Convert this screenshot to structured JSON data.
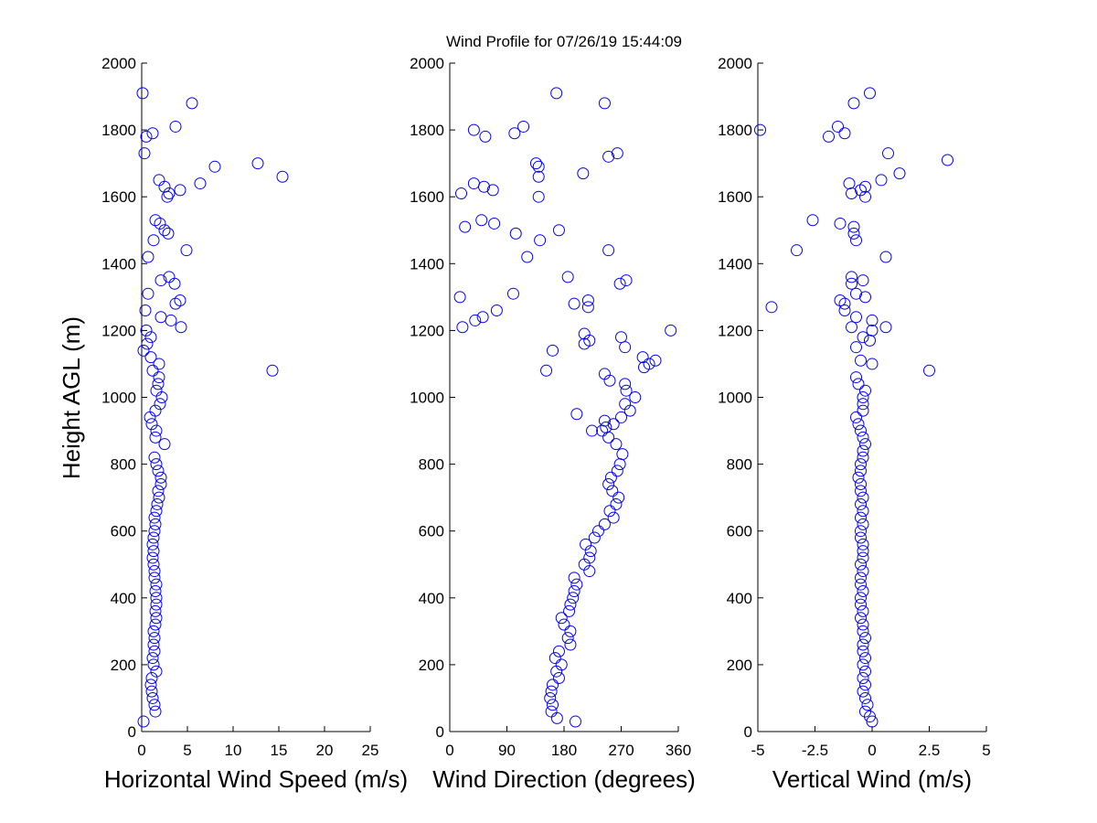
{
  "figure": {
    "title": "Wind Profile for  07/26/19 15:44:09",
    "ylabel": "Height AGL (m)"
  },
  "colors": {
    "marker": "#0000ff",
    "axis": "#000000",
    "background": "#ffffff"
  },
  "chart_data": [
    {
      "type": "scatter",
      "xlabel": "Horizontal Wind Speed (m/s)",
      "ylabel": "Height AGL (m)",
      "xlim": [
        0,
        25
      ],
      "ylim": [
        0,
        2000
      ],
      "xticks": [
        0,
        5,
        10,
        15,
        20,
        25
      ],
      "xtick_labels": [
        "0",
        "5",
        "10",
        "15",
        "20",
        "25"
      ],
      "yticks": [
        0,
        200,
        400,
        600,
        800,
        1000,
        1200,
        1400,
        1600,
        1800,
        2000
      ],
      "ytick_labels": [
        "0",
        "200",
        "400",
        "600",
        "800",
        "1000",
        "1200",
        "1400",
        "1600",
        "1800",
        "2000"
      ],
      "grid": false,
      "points": [
        [
          0.2,
          30
        ],
        [
          1.5,
          60
        ],
        [
          1.4,
          80
        ],
        [
          1.2,
          100
        ],
        [
          1.1,
          120
        ],
        [
          1.0,
          140
        ],
        [
          1.1,
          160
        ],
        [
          1.6,
          180
        ],
        [
          1.3,
          200
        ],
        [
          1.2,
          220
        ],
        [
          1.4,
          240
        ],
        [
          1.3,
          260
        ],
        [
          1.4,
          280
        ],
        [
          1.3,
          300
        ],
        [
          1.5,
          320
        ],
        [
          1.6,
          340
        ],
        [
          1.5,
          360
        ],
        [
          1.6,
          380
        ],
        [
          1.6,
          400
        ],
        [
          1.5,
          420
        ],
        [
          1.6,
          440
        ],
        [
          1.4,
          460
        ],
        [
          1.4,
          480
        ],
        [
          1.3,
          500
        ],
        [
          1.2,
          520
        ],
        [
          1.3,
          540
        ],
        [
          1.2,
          560
        ],
        [
          1.3,
          580
        ],
        [
          1.4,
          600
        ],
        [
          1.5,
          620
        ],
        [
          1.4,
          640
        ],
        [
          1.6,
          660
        ],
        [
          1.7,
          680
        ],
        [
          1.9,
          700
        ],
        [
          1.8,
          720
        ],
        [
          2.1,
          740
        ],
        [
          2.1,
          760
        ],
        [
          1.8,
          780
        ],
        [
          1.6,
          800
        ],
        [
          1.4,
          820
        ],
        [
          2.5,
          860
        ],
        [
          1.5,
          880
        ],
        [
          1.6,
          900
        ],
        [
          1.1,
          920
        ],
        [
          0.9,
          940
        ],
        [
          1.5,
          960
        ],
        [
          2.0,
          980
        ],
        [
          2.2,
          1000
        ],
        [
          1.6,
          1020
        ],
        [
          1.8,
          1040
        ],
        [
          1.9,
          1060
        ],
        [
          1.2,
          1080
        ],
        [
          14.3,
          1080
        ],
        [
          1.9,
          1100
        ],
        [
          1.0,
          1120
        ],
        [
          0.2,
          1140
        ],
        [
          0.6,
          1160
        ],
        [
          1.0,
          1180
        ],
        [
          0.5,
          1200
        ],
        [
          4.3,
          1210
        ],
        [
          3.2,
          1230
        ],
        [
          2.1,
          1240
        ],
        [
          0.4,
          1260
        ],
        [
          4.2,
          1290
        ],
        [
          3.7,
          1280
        ],
        [
          0.7,
          1310
        ],
        [
          3.6,
          1340
        ],
        [
          2.1,
          1350
        ],
        [
          3.0,
          1360
        ],
        [
          0.7,
          1420
        ],
        [
          4.9,
          1440
        ],
        [
          1.3,
          1470
        ],
        [
          2.9,
          1490
        ],
        [
          2.5,
          1500
        ],
        [
          2.0,
          1520
        ],
        [
          1.5,
          1530
        ],
        [
          2.8,
          1600
        ],
        [
          3.0,
          1610
        ],
        [
          4.2,
          1620
        ],
        [
          2.5,
          1630
        ],
        [
          6.4,
          1640
        ],
        [
          1.9,
          1650
        ],
        [
          15.4,
          1660
        ],
        [
          8.0,
          1690
        ],
        [
          12.7,
          1700
        ],
        [
          0.3,
          1730
        ],
        [
          0.5,
          1780
        ],
        [
          1.2,
          1790
        ],
        [
          3.7,
          1810
        ],
        [
          5.5,
          1880
        ],
        [
          0.1,
          1910
        ]
      ]
    },
    {
      "type": "scatter",
      "xlabel": "Wind Direction (degrees)",
      "ylabel": "",
      "xlim": [
        0,
        360
      ],
      "ylim": [
        0,
        2000
      ],
      "xticks": [
        0,
        90,
        180,
        270,
        360
      ],
      "xtick_labels": [
        "0",
        "90",
        "180",
        "270",
        "360"
      ],
      "yticks": [
        0,
        200,
        400,
        600,
        800,
        1000,
        1200,
        1400,
        1600,
        1800,
        2000
      ],
      "ytick_labels": [
        "0",
        "200",
        "400",
        "600",
        "800",
        "1000",
        "1200",
        "1400",
        "1600",
        "1800",
        "2000"
      ],
      "grid": false,
      "points": [
        [
          198,
          30
        ],
        [
          169,
          40
        ],
        [
          160,
          60
        ],
        [
          162,
          80
        ],
        [
          158,
          100
        ],
        [
          160,
          120
        ],
        [
          162,
          140
        ],
        [
          172,
          160
        ],
        [
          168,
          180
        ],
        [
          176,
          200
        ],
        [
          166,
          220
        ],
        [
          172,
          240
        ],
        [
          190,
          260
        ],
        [
          186,
          280
        ],
        [
          190,
          300
        ],
        [
          180,
          320
        ],
        [
          176,
          340
        ],
        [
          188,
          360
        ],
        [
          190,
          380
        ],
        [
          194,
          400
        ],
        [
          196,
          420
        ],
        [
          200,
          440
        ],
        [
          196,
          460
        ],
        [
          220,
          480
        ],
        [
          212,
          500
        ],
        [
          220,
          520
        ],
        [
          222,
          540
        ],
        [
          214,
          560
        ],
        [
          228,
          580
        ],
        [
          234,
          600
        ],
        [
          244,
          620
        ],
        [
          258,
          640
        ],
        [
          252,
          660
        ],
        [
          262,
          680
        ],
        [
          266,
          700
        ],
        [
          256,
          720
        ],
        [
          250,
          740
        ],
        [
          254,
          760
        ],
        [
          264,
          780
        ],
        [
          268,
          800
        ],
        [
          272,
          830
        ],
        [
          262,
          860
        ],
        [
          250,
          880
        ],
        [
          240,
          900
        ],
        [
          224,
          900
        ],
        [
          246,
          910
        ],
        [
          258,
          920
        ],
        [
          244,
          930
        ],
        [
          270,
          940
        ],
        [
          200,
          950
        ],
        [
          284,
          960
        ],
        [
          276,
          980
        ],
        [
          292,
          1000
        ],
        [
          278,
          1020
        ],
        [
          252,
          1050
        ],
        [
          244,
          1070
        ],
        [
          152,
          1080
        ],
        [
          276,
          1040
        ],
        [
          306,
          1090
        ],
        [
          314,
          1100
        ],
        [
          324,
          1110
        ],
        [
          304,
          1120
        ],
        [
          162,
          1140
        ],
        [
          276,
          1150
        ],
        [
          212,
          1160
        ],
        [
          220,
          1170
        ],
        [
          270,
          1180
        ],
        [
          212,
          1190
        ],
        [
          348,
          1200
        ],
        [
          20,
          1210
        ],
        [
          40,
          1230
        ],
        [
          52,
          1240
        ],
        [
          74,
          1260
        ],
        [
          218,
          1270
        ],
        [
          196,
          1280
        ],
        [
          218,
          1290
        ],
        [
          16,
          1300
        ],
        [
          100,
          1310
        ],
        [
          268,
          1340
        ],
        [
          278,
          1350
        ],
        [
          186,
          1360
        ],
        [
          122,
          1420
        ],
        [
          250,
          1440
        ],
        [
          142,
          1470
        ],
        [
          104,
          1490
        ],
        [
          172,
          1500
        ],
        [
          24,
          1510
        ],
        [
          70,
          1520
        ],
        [
          50,
          1530
        ],
        [
          140,
          1600
        ],
        [
          18,
          1610
        ],
        [
          68,
          1620
        ],
        [
          54,
          1630
        ],
        [
          38,
          1640
        ],
        [
          140,
          1660
        ],
        [
          136,
          1700
        ],
        [
          210,
          1670
        ],
        [
          140,
          1690
        ],
        [
          250,
          1720
        ],
        [
          264,
          1730
        ],
        [
          56,
          1780
        ],
        [
          38,
          1800
        ],
        [
          102,
          1790
        ],
        [
          116,
          1810
        ],
        [
          244,
          1880
        ],
        [
          168,
          1910
        ]
      ]
    },
    {
      "type": "scatter",
      "xlabel": "Vertical Wind (m/s)",
      "ylabel": "",
      "xlim": [
        -5,
        5
      ],
      "ylim": [
        0,
        2000
      ],
      "xticks": [
        -5,
        -2.5,
        0,
        2.5,
        5
      ],
      "xtick_labels": [
        "-5",
        "-2.5",
        "0",
        "2.5",
        "5"
      ],
      "yticks": [
        0,
        200,
        400,
        600,
        800,
        1000,
        1200,
        1400,
        1600,
        1800,
        2000
      ],
      "ytick_labels": [
        "0",
        "200",
        "400",
        "600",
        "800",
        "1000",
        "1200",
        "1400",
        "1600",
        "1800",
        "2000"
      ],
      "grid": false,
      "points": [
        [
          0.0,
          30
        ],
        [
          -0.1,
          45
        ],
        [
          -0.3,
          60
        ],
        [
          -0.2,
          80
        ],
        [
          -0.3,
          100
        ],
        [
          -0.4,
          120
        ],
        [
          -0.3,
          140
        ],
        [
          -0.4,
          160
        ],
        [
          -0.3,
          180
        ],
        [
          -0.4,
          200
        ],
        [
          -0.3,
          220
        ],
        [
          -0.4,
          240
        ],
        [
          -0.4,
          260
        ],
        [
          -0.3,
          280
        ],
        [
          -0.4,
          300
        ],
        [
          -0.4,
          320
        ],
        [
          -0.5,
          340
        ],
        [
          -0.4,
          360
        ],
        [
          -0.5,
          380
        ],
        [
          -0.5,
          400
        ],
        [
          -0.4,
          420
        ],
        [
          -0.5,
          440
        ],
        [
          -0.5,
          460
        ],
        [
          -0.4,
          480
        ],
        [
          -0.5,
          500
        ],
        [
          -0.4,
          520
        ],
        [
          -0.4,
          540
        ],
        [
          -0.4,
          560
        ],
        [
          -0.5,
          580
        ],
        [
          -0.5,
          600
        ],
        [
          -0.4,
          620
        ],
        [
          -0.5,
          640
        ],
        [
          -0.4,
          660
        ],
        [
          -0.5,
          680
        ],
        [
          -0.4,
          700
        ],
        [
          -0.5,
          720
        ],
        [
          -0.5,
          740
        ],
        [
          -0.6,
          760
        ],
        [
          -0.5,
          780
        ],
        [
          -0.5,
          800
        ],
        [
          -0.4,
          820
        ],
        [
          -0.4,
          840
        ],
        [
          -0.3,
          860
        ],
        [
          -0.4,
          880
        ],
        [
          -0.5,
          900
        ],
        [
          -0.6,
          920
        ],
        [
          -0.7,
          940
        ],
        [
          -0.4,
          960
        ],
        [
          -0.4,
          980
        ],
        [
          -0.4,
          1000
        ],
        [
          -0.3,
          1020
        ],
        [
          -0.6,
          1040
        ],
        [
          -0.7,
          1060
        ],
        [
          2.5,
          1080
        ],
        [
          0.0,
          1100
        ],
        [
          -0.5,
          1110
        ],
        [
          -0.7,
          1150
        ],
        [
          -0.1,
          1170
        ],
        [
          -0.4,
          1180
        ],
        [
          0.0,
          1200
        ],
        [
          0.6,
          1210
        ],
        [
          -0.9,
          1210
        ],
        [
          0.0,
          1230
        ],
        [
          -0.7,
          1240
        ],
        [
          -1.2,
          1260
        ],
        [
          -4.4,
          1270
        ],
        [
          -1.2,
          1280
        ],
        [
          -1.4,
          1290
        ],
        [
          -0.3,
          1300
        ],
        [
          -0.7,
          1310
        ],
        [
          -0.9,
          1340
        ],
        [
          -0.4,
          1350
        ],
        [
          -0.9,
          1360
        ],
        [
          0.6,
          1420
        ],
        [
          -3.3,
          1440
        ],
        [
          -0.7,
          1470
        ],
        [
          -0.8,
          1490
        ],
        [
          -0.8,
          1510
        ],
        [
          -1.4,
          1520
        ],
        [
          -2.6,
          1530
        ],
        [
          -0.3,
          1600
        ],
        [
          -0.9,
          1610
        ],
        [
          -0.5,
          1620
        ],
        [
          -0.3,
          1630
        ],
        [
          -1.0,
          1640
        ],
        [
          0.4,
          1650
        ],
        [
          1.2,
          1670
        ],
        [
          3.3,
          1710
        ],
        [
          0.7,
          1730
        ],
        [
          -1.9,
          1780
        ],
        [
          -1.2,
          1790
        ],
        [
          -4.9,
          1800
        ],
        [
          -1.5,
          1810
        ],
        [
          -0.8,
          1880
        ],
        [
          -0.1,
          1910
        ]
      ]
    }
  ]
}
